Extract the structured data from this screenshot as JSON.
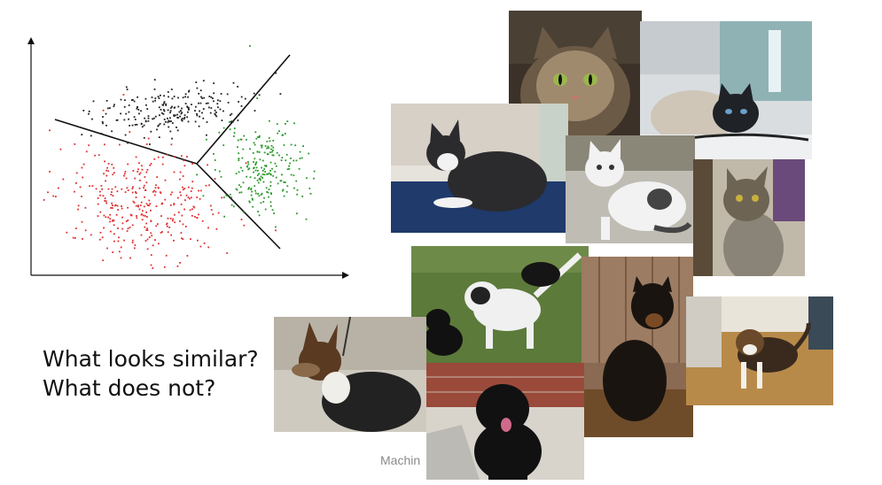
{
  "question": {
    "line1": "What looks similar?",
    "line2": "What does not?"
  },
  "footer": {
    "text": "Machin"
  },
  "chart_data": {
    "type": "scatter",
    "xlabel": "",
    "ylabel": "",
    "grid": false,
    "legend": "none",
    "series": [
      {
        "color": "#222222",
        "cluster": "top"
      },
      {
        "color": "#e03030",
        "cluster": "left"
      },
      {
        "color": "#2a9a2a",
        "cluster": "right"
      }
    ]
  },
  "photos": [
    {
      "subject": "tabby-cat",
      "colors": [
        "#6b5a45",
        "#3b3128",
        "#a08a6e"
      ]
    },
    {
      "subject": "siamese-cat",
      "colors": [
        "#d9dde0",
        "#1f2226",
        "#8fb2b5"
      ]
    },
    {
      "subject": "gray-white-cat",
      "colors": [
        "#e6e2dc",
        "#2b2b2e",
        "#1f3a6b"
      ]
    },
    {
      "subject": "white-kitten",
      "colors": [
        "#bfbcb4",
        "#f2f2f2",
        "#444444"
      ]
    },
    {
      "subject": "gray-tabby-cat",
      "colors": [
        "#6e6454",
        "#8a8478",
        "#c0b8a8"
      ]
    },
    {
      "subject": "puppies-on-grass",
      "colors": [
        "#5c7a3a",
        "#111111",
        "#f0f0f0"
      ]
    },
    {
      "subject": "rottweiler-puppy",
      "colors": [
        "#8a6a52",
        "#1a1410",
        "#6e4c2a"
      ]
    },
    {
      "subject": "beagle-puppy",
      "colors": [
        "#b88a4a",
        "#e9e4da",
        "#3a2a1e"
      ]
    },
    {
      "subject": "shepherd-dog",
      "colors": [
        "#cfcac0",
        "#5a3a20",
        "#222222"
      ]
    },
    {
      "subject": "black-fluffy-dog",
      "colors": [
        "#9a4a3a",
        "#111111",
        "#d8d4cc"
      ]
    }
  ]
}
